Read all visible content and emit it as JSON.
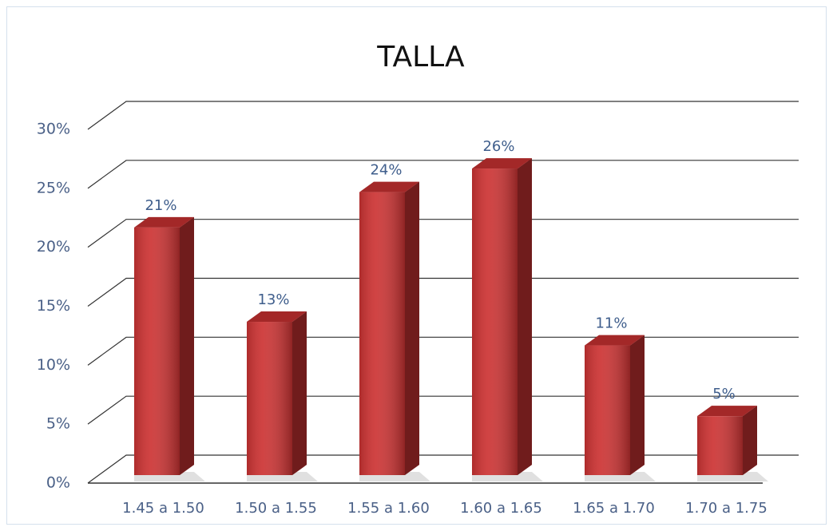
{
  "chart_data": {
    "type": "bar3d",
    "title": "TALLA",
    "categories": [
      "1.45 a 1.50",
      "1.50 a 1.55",
      "1.55 a 1.60",
      "1.60 a 1.65",
      "1.65 a 1.70",
      "1.70 a 1.75"
    ],
    "values": [
      21,
      13,
      24,
      26,
      11,
      5
    ],
    "value_labels": [
      "21%",
      "13%",
      "24%",
      "26%",
      "11%",
      "5%"
    ],
    "color": "#cc3333",
    "ylim": [
      0,
      30
    ],
    "yticks": [
      {
        "value": 0,
        "label": "0%"
      },
      {
        "value": 5,
        "label": "5%"
      },
      {
        "value": 10,
        "label": "10%"
      },
      {
        "value": 15,
        "label": "15%"
      },
      {
        "value": 20,
        "label": "20%"
      },
      {
        "value": 25,
        "label": "25%"
      },
      {
        "value": 30,
        "label": "30%"
      }
    ],
    "grid": true
  }
}
